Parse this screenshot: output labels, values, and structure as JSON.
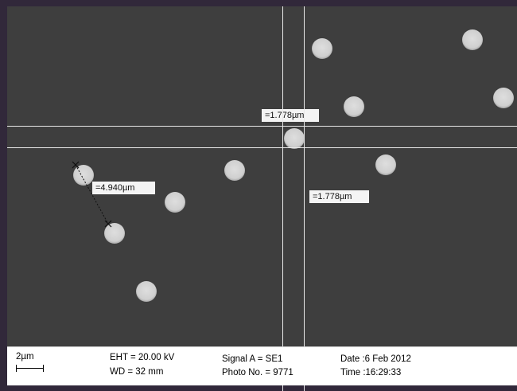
{
  "annotations": {
    "horizontal_distance": "=1.778µm",
    "vertical_distance": "=1.778µm",
    "particle_distance": "=4.940µm"
  },
  "databar": {
    "scale_label": "2µm",
    "eht": "EHT = 20.00 kV",
    "wd": "WD =  32 mm",
    "signal": "Signal A = SE1",
    "photo": "Photo No. = 9771",
    "date": "Date :6 Feb 2012",
    "time": "Time :16:29:33"
  },
  "colors": {
    "background": "#3e3e3e",
    "particle": "#d4d4d4",
    "measure_line": "#e8e8e8",
    "databar": "#ffffff"
  }
}
